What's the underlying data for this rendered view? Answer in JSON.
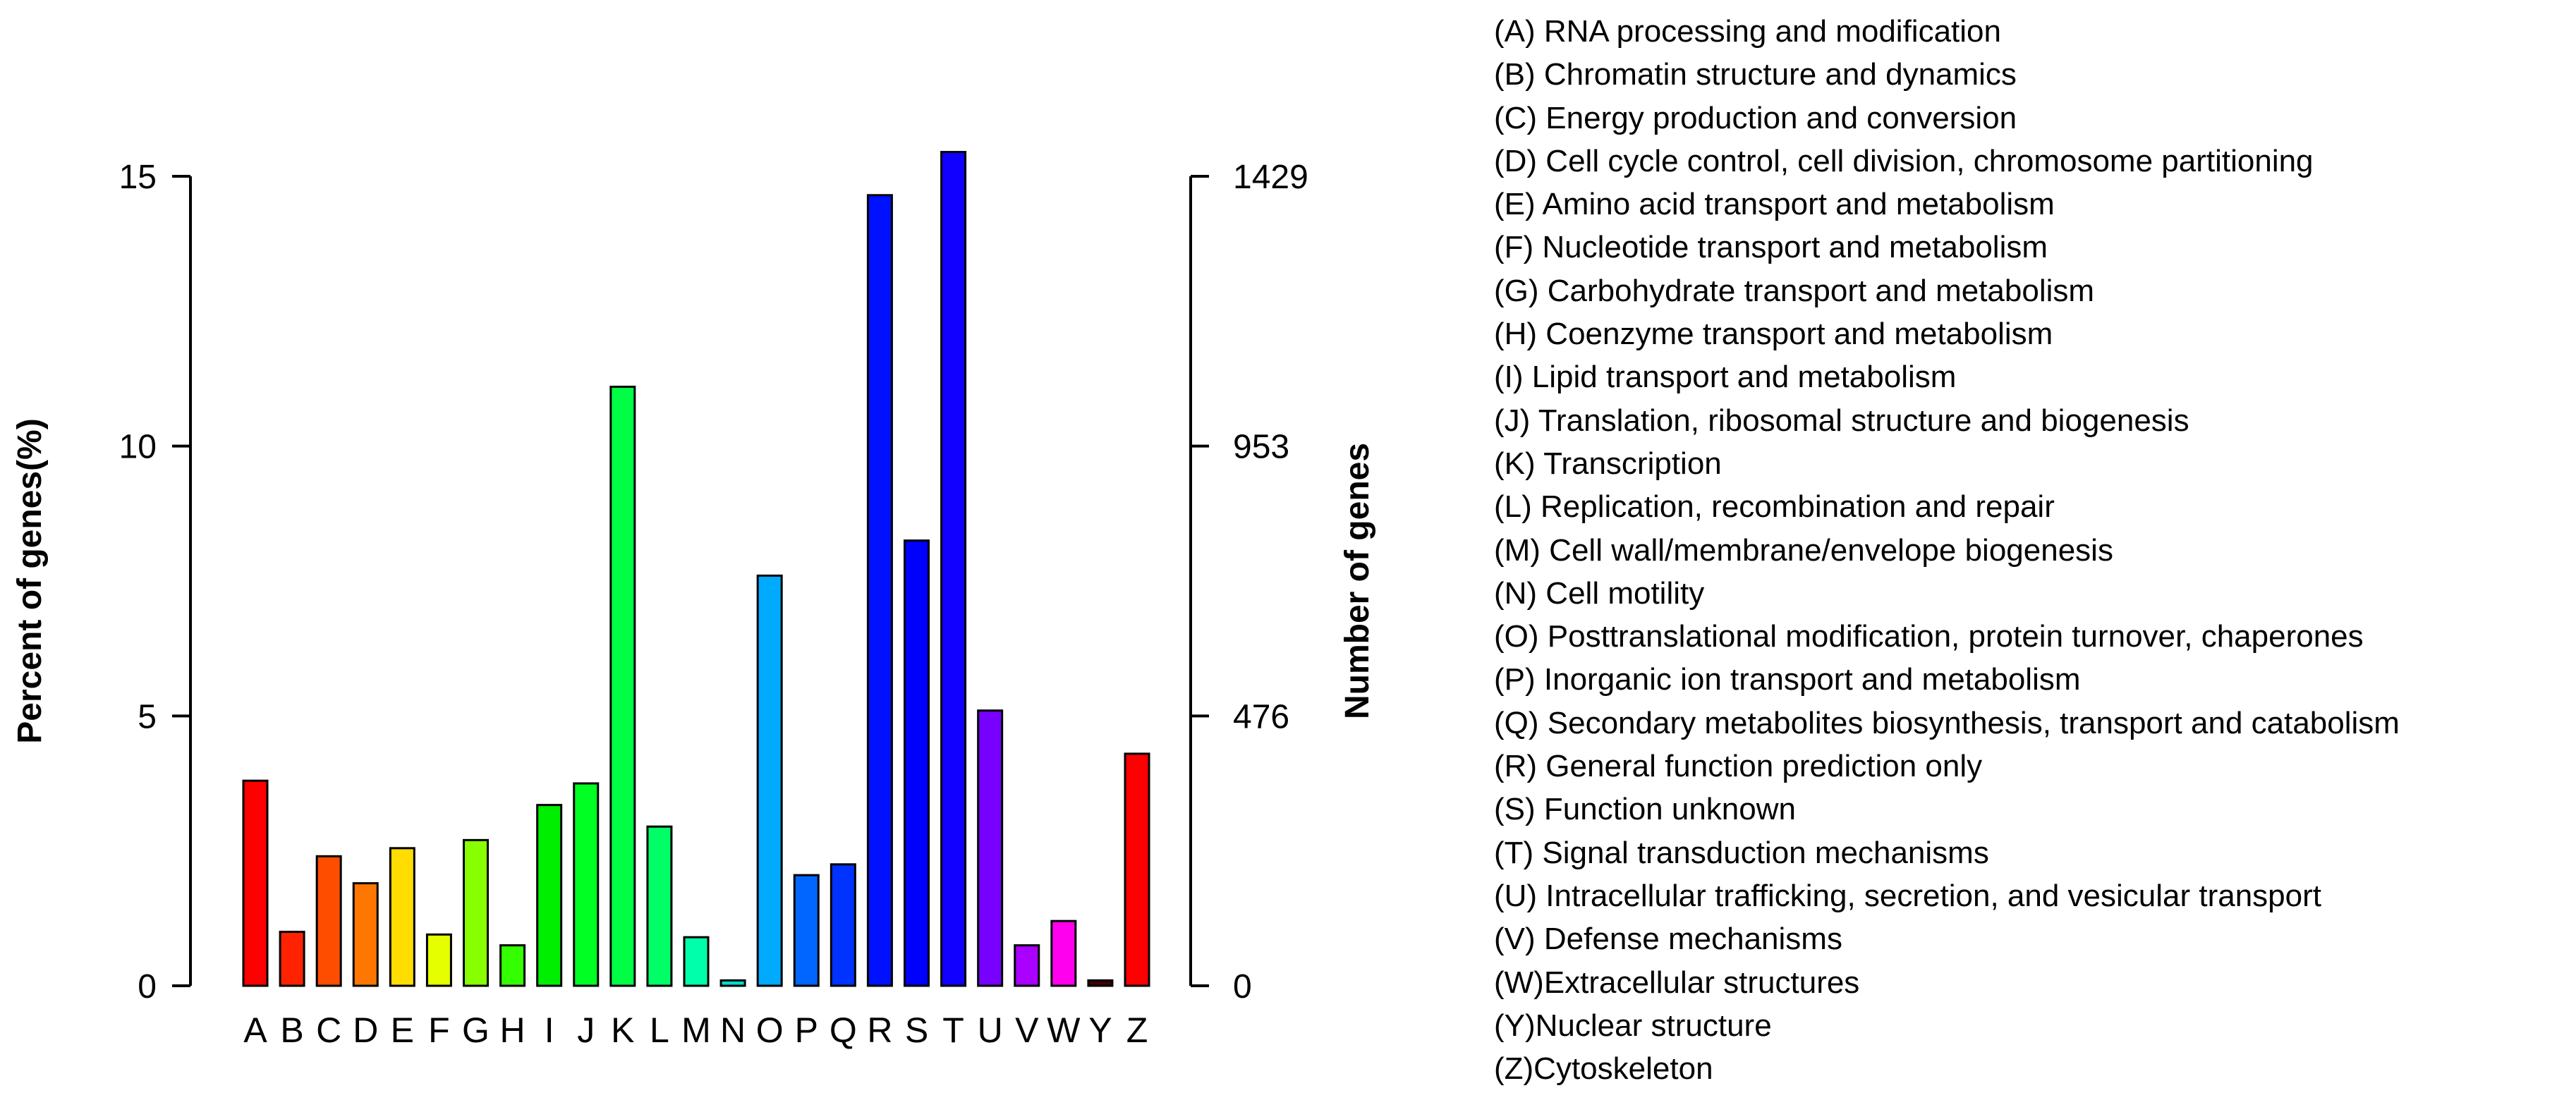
{
  "chart_data": {
    "type": "bar",
    "categories": [
      "A",
      "B",
      "C",
      "D",
      "E",
      "F",
      "G",
      "H",
      "I",
      "J",
      "K",
      "L",
      "M",
      "N",
      "O",
      "P",
      "Q",
      "R",
      "S",
      "T",
      "U",
      "V",
      "W",
      "Y",
      "Z"
    ],
    "values": [
      3.8,
      1.0,
      2.4,
      1.9,
      2.55,
      0.95,
      2.7,
      0.75,
      3.35,
      3.75,
      11.1,
      2.95,
      0.9,
      0.1,
      7.6,
      2.05,
      2.25,
      14.65,
      8.25,
      15.45,
      5.1,
      0.75,
      1.2,
      0.1,
      4.3
    ],
    "colors": [
      "#ff0000",
      "#ff2200",
      "#ff4d00",
      "#ff7700",
      "#ffdd00",
      "#e6ff00",
      "#88ff00",
      "#33ff00",
      "#00ee00",
      "#00ff22",
      "#00ff44",
      "#00ff66",
      "#00ffaa",
      "#00ddcc",
      "#00aaff",
      "#0066ff",
      "#0033ff",
      "#0011ff",
      "#0000ff",
      "#1100ff",
      "#7700ff",
      "#aa00ff",
      "#ff00ee",
      "#440000",
      "#ff0000"
    ],
    "title": "",
    "xlabel": "",
    "ylabel": "Percent of genes(%)",
    "y2label": "Number of genes",
    "ylim": [
      0,
      15
    ],
    "yticks": [
      0,
      5,
      10,
      15
    ],
    "y2ticks": [
      "0",
      "476",
      "953",
      "1429"
    ],
    "grid": false,
    "legend": [
      "(A) RNA processing and modification",
      "(B) Chromatin structure and dynamics",
      "(C) Energy production and conversion",
      "(D) Cell cycle control, cell division, chromosome partitioning",
      "(E) Amino acid transport and metabolism",
      "(F) Nucleotide transport and metabolism",
      "(G) Carbohydrate transport and metabolism",
      "(H) Coenzyme transport and metabolism",
      "(I)  Lipid transport and metabolism",
      "(J)  Translation, ribosomal structure and biogenesis",
      "(K) Transcription",
      "(L)  Replication, recombination and repair",
      "(M) Cell wall/membrane/envelope biogenesis",
      "(N) Cell motility",
      "(O) Posttranslational modification, protein turnover, chaperones",
      "(P) Inorganic ion transport and metabolism",
      "(Q) Secondary metabolites biosynthesis, transport and catabolism",
      "(R) General function prediction only",
      "(S) Function unknown",
      "(T)  Signal transduction mechanisms",
      "(U) Intracellular trafficking, secretion, and vesicular transport",
      "(V)  Defense mechanisms",
      "(W)Extracellular structures",
      "(Y)Nuclear structure",
      "(Z)Cytoskeleton"
    ],
    "legend_position": "right"
  }
}
